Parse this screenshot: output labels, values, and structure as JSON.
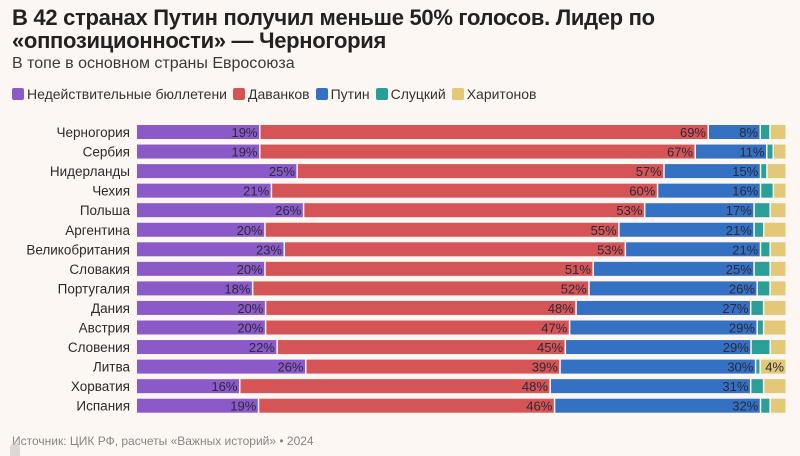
{
  "chart_data": {
    "type": "bar",
    "orientation": "horizontal",
    "stacked": true,
    "title": "В 42 странах Путин получил меньше 50% голосов. Лидер по «оппозиционности» — Черногория",
    "subtitle": "В топе в основном страны Евросоюза",
    "legend_position": "top-left",
    "grid": false,
    "categories": [
      "Черногория",
      "Сербия",
      "Нидерланды",
      "Чехия",
      "Польша",
      "Аргентина",
      "Великобритания",
      "Словакия",
      "Португалия",
      "Дания",
      "Австрия",
      "Словения",
      "Литва",
      "Хорватия",
      "Испания"
    ],
    "series": [
      {
        "name": "Недействительные бюллетени",
        "color": "#8c5ac8",
        "values": [
          19,
          19,
          25,
          21,
          26,
          20,
          23,
          20,
          18,
          20,
          20,
          22,
          26,
          16,
          19
        ]
      },
      {
        "name": "Даванков",
        "color": "#d55556",
        "values": [
          69,
          67,
          57,
          60,
          53,
          55,
          53,
          51,
          52,
          48,
          47,
          45,
          39,
          48,
          46
        ]
      },
      {
        "name": "Путин",
        "color": "#3571c3",
        "values": [
          8,
          11,
          15,
          16,
          17,
          21,
          21,
          25,
          26,
          27,
          29,
          29,
          30,
          31,
          32
        ]
      },
      {
        "name": "Слуцкий",
        "color": "#2a9f98",
        "values": [
          1.5,
          1,
          1,
          2,
          2.5,
          1.5,
          1.5,
          2.5,
          2,
          2,
          1,
          3,
          0.7,
          2,
          1.5
        ]
      },
      {
        "name": "Харитонов",
        "color": "#e2c877",
        "values": [
          2.5,
          2,
          3,
          2,
          2.5,
          3.5,
          2.5,
          2.5,
          2.5,
          3.5,
          3.5,
          2.5,
          4,
          3.5,
          2.5
        ]
      }
    ],
    "labeled_series": [
      0,
      1,
      2
    ],
    "extra_labels": [
      {
        "series": 4,
        "category": "Литва",
        "text": "4%"
      }
    ]
  },
  "footer": "Источник: ЦИК РФ, расчеты «Важных историй» • 2024"
}
